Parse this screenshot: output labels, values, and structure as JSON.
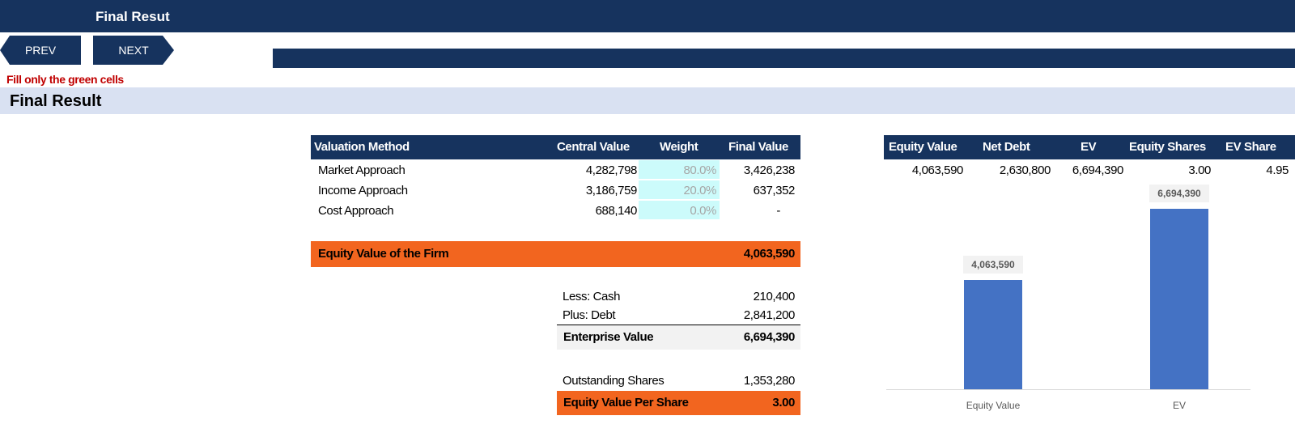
{
  "header": {
    "title": "Final Resut"
  },
  "nav": {
    "prev_label": "PREV",
    "next_label": "NEXT"
  },
  "hint": "Fill only the green cells",
  "section": {
    "title": "Final Result"
  },
  "valuation": {
    "headers": {
      "method": "Valuation Method",
      "central": "Central Value",
      "weight": "Weight",
      "final": "Final Value"
    },
    "rows": [
      {
        "method": "Market Approach",
        "central": "4,282,798",
        "weight": "80.0%",
        "final": "3,426,238"
      },
      {
        "method": "Income Approach",
        "central": "3,186,759",
        "weight": "20.0%",
        "final": "637,352"
      },
      {
        "method": "Cost Approach",
        "central": "688,140",
        "weight": "0.0%",
        "final": "-"
      }
    ],
    "equity_value_label": "Equity Value of the Firm",
    "equity_value": "4,063,590",
    "less_cash_label": "Less: Cash",
    "less_cash": "210,400",
    "plus_debt_label": "Plus: Debt",
    "plus_debt": "2,841,200",
    "ev_label": "Enterprise Value",
    "ev": "6,694,390",
    "shares_label": "Outstanding Shares",
    "shares": "1,353,280",
    "per_share_label": "Equity Value Per Share",
    "per_share": "3.00"
  },
  "summary": {
    "headers": [
      "Equity Value",
      "Net Debt",
      "EV",
      "Equity Shares",
      "EV Share"
    ],
    "values": [
      "4,063,590",
      "2,630,800",
      "6,694,390",
      "3.00",
      "4.95"
    ]
  },
  "colors": {
    "navy": "#16335e",
    "orange": "#f2651f",
    "green_input": "#ccfbfb",
    "bar": "#4472c4",
    "hint_red": "#c00000"
  },
  "chart_data": {
    "type": "bar",
    "categories": [
      "Equity Value",
      "EV"
    ],
    "values": [
      4063590,
      6694390
    ],
    "data_labels": [
      "4,063,590",
      "6,694,390"
    ],
    "ylim": [
      0,
      7800000
    ],
    "grid": false,
    "legend": "none"
  }
}
